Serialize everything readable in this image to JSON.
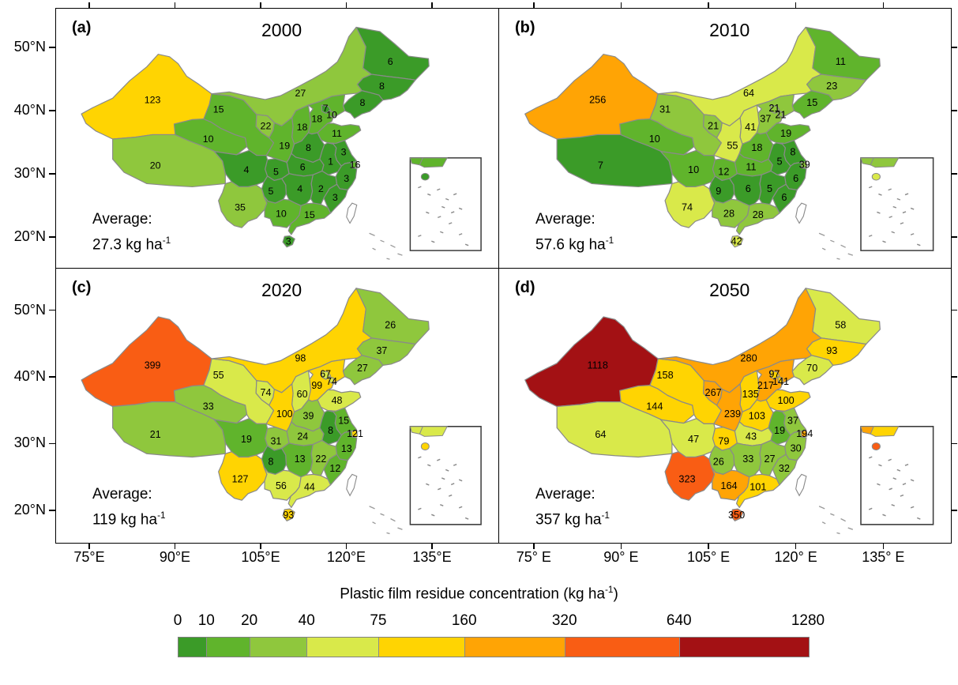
{
  "panels": [
    {
      "key": "a",
      "letter": "(a)",
      "year": "2000",
      "average_label": "Average:",
      "average_value": "27.3 kg ha",
      "average_exp": "-1"
    },
    {
      "key": "b",
      "letter": "(b)",
      "year": "2010",
      "average_label": "Average:",
      "average_value": "57.6 kg ha",
      "average_exp": "-1"
    },
    {
      "key": "c",
      "letter": "(c)",
      "year": "2020",
      "average_label": "Average:",
      "average_value": "119 kg ha",
      "average_exp": "-1"
    },
    {
      "key": "d",
      "letter": "(d)",
      "year": "2050",
      "average_label": "Average:",
      "average_value": "357 kg ha",
      "average_exp": "-1"
    }
  ],
  "axes": {
    "lat": [
      "50°N",
      "40°N",
      "30°N",
      "20°N"
    ],
    "lon_left": [
      "75°E",
      "90°E",
      "105°E",
      "120°E",
      "135°E"
    ],
    "lon_right": [
      "75° E",
      "90° E",
      "105° E",
      "120° E",
      "135° E"
    ]
  },
  "legend": {
    "title_prefix": "Plastic film residue concentration (kg ha",
    "title_exp": "-1",
    "title_suffix": ")",
    "tick_labels": [
      "0",
      "10",
      "20",
      "40",
      "75",
      "160",
      "320",
      "640",
      "1280"
    ],
    "colors": [
      "#3B9B28",
      "#60B42C",
      "#8FC73D",
      "#D9E94A",
      "#FFD402",
      "#FFA405",
      "#F95D14",
      "#A31114"
    ]
  },
  "chart_data": {
    "type": "heatmap",
    "subtype": "choropleth-map-panels",
    "title": "Plastic film residue concentration (kg ha⁻¹)",
    "unit": "kg ha⁻¹",
    "years": [
      "2000",
      "2010",
      "2020",
      "2050"
    ],
    "averages": [
      27.3,
      57.6,
      119,
      357
    ],
    "legend_breaks": [
      0,
      10,
      20,
      40,
      75,
      160,
      320,
      640,
      1280
    ],
    "provinces": [
      {
        "name": "Xinjiang",
        "values": [
          123,
          256,
          399,
          1118
        ]
      },
      {
        "name": "Tibet",
        "values": [
          20,
          7,
          21,
          64
        ]
      },
      {
        "name": "Qinghai",
        "values": [
          10,
          10,
          33,
          144
        ]
      },
      {
        "name": "Gansu",
        "values": [
          15,
          31,
          55,
          158
        ]
      },
      {
        "name": "Inner Mongolia",
        "values": [
          27,
          64,
          98,
          280
        ]
      },
      {
        "name": "Heilongjiang",
        "values": [
          6,
          11,
          26,
          58
        ]
      },
      {
        "name": "Jilin",
        "values": [
          8,
          23,
          37,
          93
        ]
      },
      {
        "name": "Liaoning",
        "values": [
          8,
          15,
          27,
          70
        ]
      },
      {
        "name": "Hebei",
        "values": [
          18,
          37,
          99,
          217
        ]
      },
      {
        "name": "Shanxi",
        "values": [
          18,
          41,
          60,
          135
        ]
      },
      {
        "name": "Shandong",
        "values": [
          11,
          19,
          48,
          100
        ]
      },
      {
        "name": "Henan",
        "values": [
          8,
          18,
          39,
          103
        ]
      },
      {
        "name": "Shaanxi",
        "values": [
          19,
          55,
          100,
          239
        ]
      },
      {
        "name": "Ningxia",
        "values": [
          22,
          21,
          74,
          267
        ]
      },
      {
        "name": "Sichuan",
        "values": [
          4,
          10,
          19,
          47
        ]
      },
      {
        "name": "Chongqing",
        "values": [
          5,
          12,
          31,
          79
        ]
      },
      {
        "name": "Hubei",
        "values": [
          6,
          11,
          24,
          43
        ]
      },
      {
        "name": "Anhui",
        "values": [
          1,
          5,
          8,
          19
        ]
      },
      {
        "name": "Jiangsu",
        "values": [
          3,
          8,
          15,
          37
        ]
      },
      {
        "name": "Zhejiang",
        "values": [
          3,
          6,
          13,
          30
        ]
      },
      {
        "name": "Shanghai",
        "values": [
          16,
          39,
          121,
          194
        ]
      },
      {
        "name": "Jiangxi",
        "values": [
          2,
          5,
          22,
          27
        ]
      },
      {
        "name": "Hunan",
        "values": [
          4,
          6,
          13,
          33
        ]
      },
      {
        "name": "Fujian",
        "values": [
          3,
          6,
          12,
          32
        ]
      },
      {
        "name": "Guizhou",
        "values": [
          5,
          9,
          8,
          26
        ]
      },
      {
        "name": "Yunnan",
        "values": [
          35,
          74,
          127,
          323
        ]
      },
      {
        "name": "Guangxi",
        "values": [
          10,
          28,
          56,
          164
        ]
      },
      {
        "name": "Guangdong",
        "values": [
          15,
          28,
          44,
          101
        ]
      },
      {
        "name": "Hainan",
        "values": [
          3,
          42,
          93,
          350
        ]
      },
      {
        "name": "Beijing",
        "values": [
          7,
          21,
          67,
          97
        ]
      },
      {
        "name": "Tianjin",
        "values": [
          10,
          21,
          74,
          141
        ]
      }
    ]
  }
}
